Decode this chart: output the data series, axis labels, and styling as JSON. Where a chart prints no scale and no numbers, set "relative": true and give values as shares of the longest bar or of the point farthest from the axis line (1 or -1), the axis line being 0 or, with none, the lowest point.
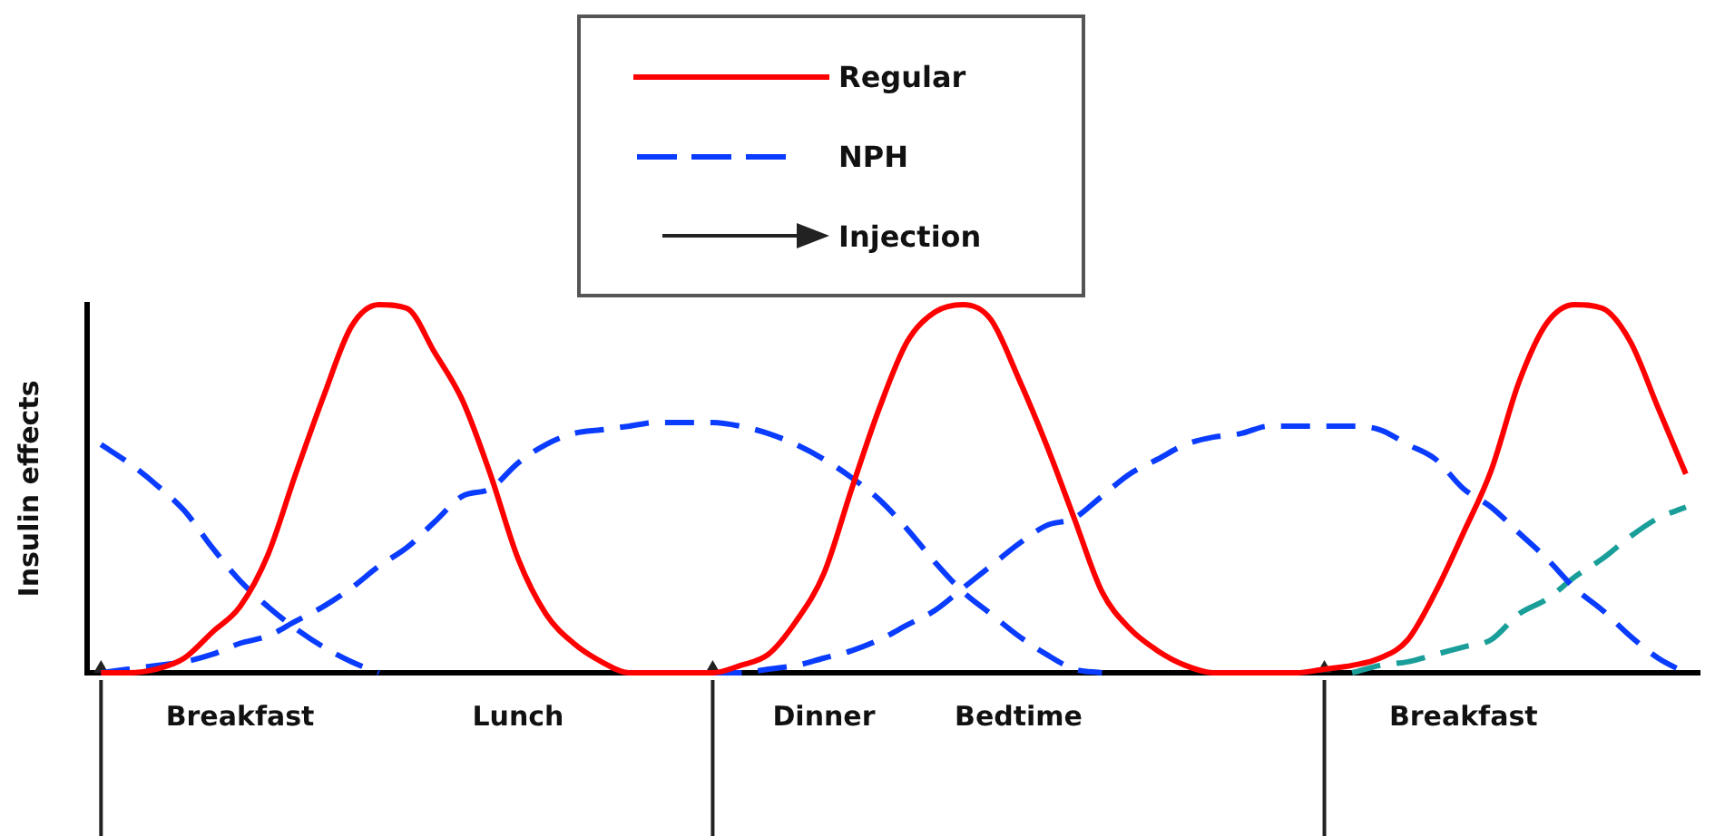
{
  "chart_data": {
    "type": "line",
    "relative": true,
    "ylabel": "Insulin effects",
    "legend": "top",
    "categories": [
      null,
      null,
      null,
      null,
      null,
      "Breakfast",
      null,
      null,
      null,
      null,
      null,
      null,
      null,
      null,
      null,
      "Lunch",
      null,
      null,
      null,
      null,
      null,
      null,
      null,
      null,
      null,
      null,
      "Dinner",
      null,
      null,
      null,
      null,
      null,
      null,
      "Bedtime",
      null,
      null,
      null,
      null,
      null,
      null,
      null,
      null,
      null,
      null,
      null,
      null,
      null,
      null,
      null,
      "Breakfast",
      null,
      null,
      null,
      null,
      null,
      null,
      null,
      null
    ],
    "series": [
      {
        "name": "Regular",
        "color": "#ff0000",
        "line_style": "solid",
        "values": [
          0,
          0,
          0.01,
          0.04,
          0.11,
          0.18,
          0.32,
          0.54,
          0.75,
          0.94,
          1.0,
          0.99,
          0.87,
          0.74,
          0.54,
          0.31,
          0.16,
          0.08,
          0.03,
          0,
          0,
          0,
          0,
          0.02,
          0.05,
          0.14,
          0.27,
          0.5,
          0.72,
          0.9,
          0.98,
          1.0,
          0.96,
          0.8,
          0.62,
          0.42,
          0.22,
          0.12,
          0.06,
          0.02,
          0,
          0,
          0,
          0,
          0.01,
          0.02,
          0.04,
          0.09,
          0.22,
          0.38,
          0.55,
          0.79,
          0.95,
          1.0,
          0.99,
          0.9,
          0.72,
          0.54
        ]
      },
      {
        "name": "NPH",
        "color": "#0a3cff",
        "line_style": "dashed",
        "values": [
          0.62,
          0.57,
          0.51,
          0.44,
          0.34,
          0.25,
          0.18,
          0.12,
          0.07,
          0.03,
          0,
          null,
          null,
          null,
          null,
          null,
          null,
          null,
          null,
          null,
          null,
          null,
          null,
          null,
          null,
          null,
          null,
          null,
          null,
          null,
          null,
          null,
          null,
          null,
          null,
          null,
          null,
          null,
          null,
          null,
          null,
          null,
          null,
          null,
          null,
          null,
          null,
          null,
          null,
          null,
          null,
          null,
          null,
          null,
          null,
          null,
          null,
          null
        ]
      },
      {
        "color": "#0a3cff",
        "line_style": "dashed",
        "values": [
          0,
          0.01,
          0.02,
          0.03,
          0.05,
          0.08,
          0.1,
          0.14,
          0.18,
          0.23,
          0.29,
          0.34,
          0.41,
          0.48,
          0.5,
          0.57,
          0.62,
          0.65,
          0.66,
          0.67,
          0.68,
          0.68,
          0.68,
          0.67,
          0.65,
          0.62,
          0.58,
          0.53,
          0.47,
          0.39,
          0.3,
          0.22,
          0.16,
          0.1,
          0.05,
          0.01,
          0,
          null,
          null,
          null,
          null,
          null,
          null,
          null,
          null,
          null,
          null,
          null,
          null,
          null,
          null,
          null,
          null,
          null,
          null,
          null,
          null,
          null
        ]
      },
      {
        "color": "#0a3cff",
        "line_style": "dashed",
        "values": [
          null,
          null,
          null,
          null,
          null,
          null,
          null,
          null,
          null,
          null,
          null,
          null,
          null,
          null,
          null,
          null,
          null,
          null,
          null,
          null,
          null,
          null,
          0,
          0,
          0.01,
          0.02,
          0.04,
          0.06,
          0.09,
          0.13,
          0.17,
          0.23,
          0.29,
          0.35,
          0.4,
          0.42,
          0.48,
          0.54,
          0.58,
          0.62,
          0.64,
          0.65,
          0.67,
          0.67,
          0.67,
          0.67,
          0.66,
          0.62,
          0.58,
          0.5,
          0.45,
          0.38,
          0.31,
          0.23,
          0.17,
          0.1,
          0.04,
          0
        ]
      },
      {
        "color": "#1a9e9a",
        "line_style": "dashed",
        "values": [
          null,
          null,
          null,
          null,
          null,
          null,
          null,
          null,
          null,
          null,
          null,
          null,
          null,
          null,
          null,
          null,
          null,
          null,
          null,
          null,
          null,
          null,
          null,
          null,
          null,
          null,
          null,
          null,
          null,
          null,
          null,
          null,
          null,
          null,
          null,
          null,
          null,
          null,
          null,
          null,
          null,
          null,
          null,
          null,
          null,
          0,
          0.02,
          0.03,
          0.05,
          0.07,
          0.09,
          0.16,
          0.2,
          0.26,
          0.31,
          0.37,
          0.42,
          0.45
        ]
      },
      {
        "name": "Injection",
        "type": "scatter",
        "color": "#222222",
        "values": [
          0,
          null,
          null,
          null,
          null,
          null,
          null,
          null,
          null,
          null,
          null,
          null,
          null,
          null,
          null,
          null,
          null,
          null,
          null,
          null,
          null,
          null,
          0,
          null,
          null,
          null,
          null,
          null,
          null,
          null,
          null,
          null,
          null,
          null,
          null,
          null,
          null,
          null,
          null,
          null,
          null,
          null,
          null,
          null,
          0,
          null,
          null,
          null,
          null,
          null,
          null,
          null,
          null,
          null,
          null,
          null,
          null,
          null
        ]
      }
    ]
  }
}
